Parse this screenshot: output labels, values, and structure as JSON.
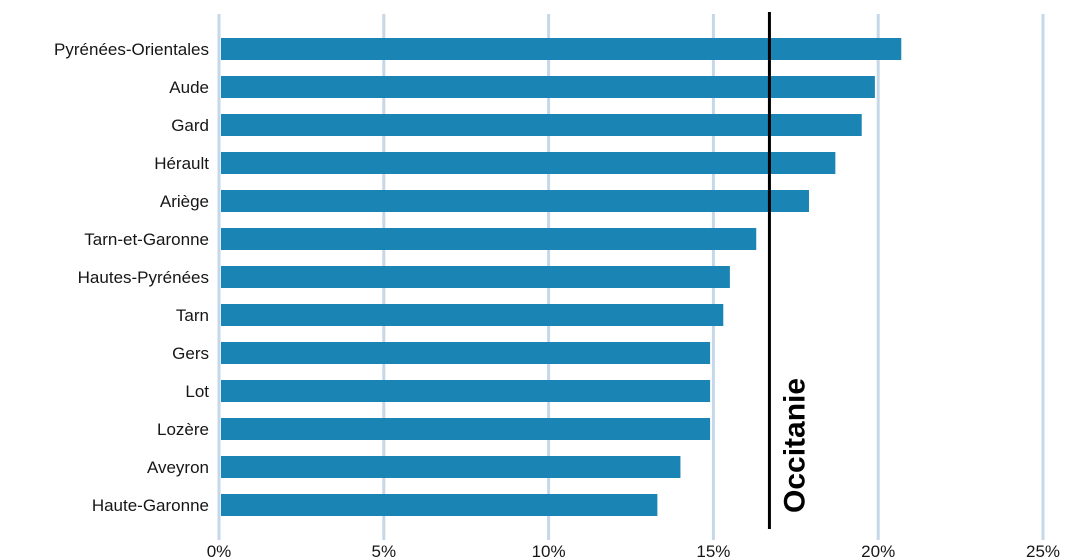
{
  "chart_data": {
    "type": "bar",
    "orientation": "horizontal",
    "categories": [
      "Pyrénées-Orientales",
      "Aude",
      "Gard",
      "Hérault",
      "Ariège",
      "Tarn-et-Garonne",
      "Hautes-Pyrénées",
      "Tarn",
      "Gers",
      "Lot",
      "Lozère",
      "Aveyron",
      "Haute-Garonne"
    ],
    "values": [
      20.7,
      19.9,
      19.5,
      18.7,
      17.9,
      16.3,
      15.5,
      15.3,
      14.9,
      14.9,
      14.9,
      14.0,
      13.3
    ],
    "xlim": [
      0,
      25
    ],
    "xticks": [
      0,
      5,
      10,
      15,
      20,
      25
    ],
    "xtick_labels": [
      "0%",
      "5%",
      "10%",
      "15%",
      "20%",
      "25%"
    ],
    "grid": true,
    "reference_line": {
      "value": 16.7,
      "label": "Occitanie"
    },
    "colors": {
      "bar": "#1a84b4",
      "grid": "#c5d7e8",
      "reference": "#000000"
    }
  }
}
